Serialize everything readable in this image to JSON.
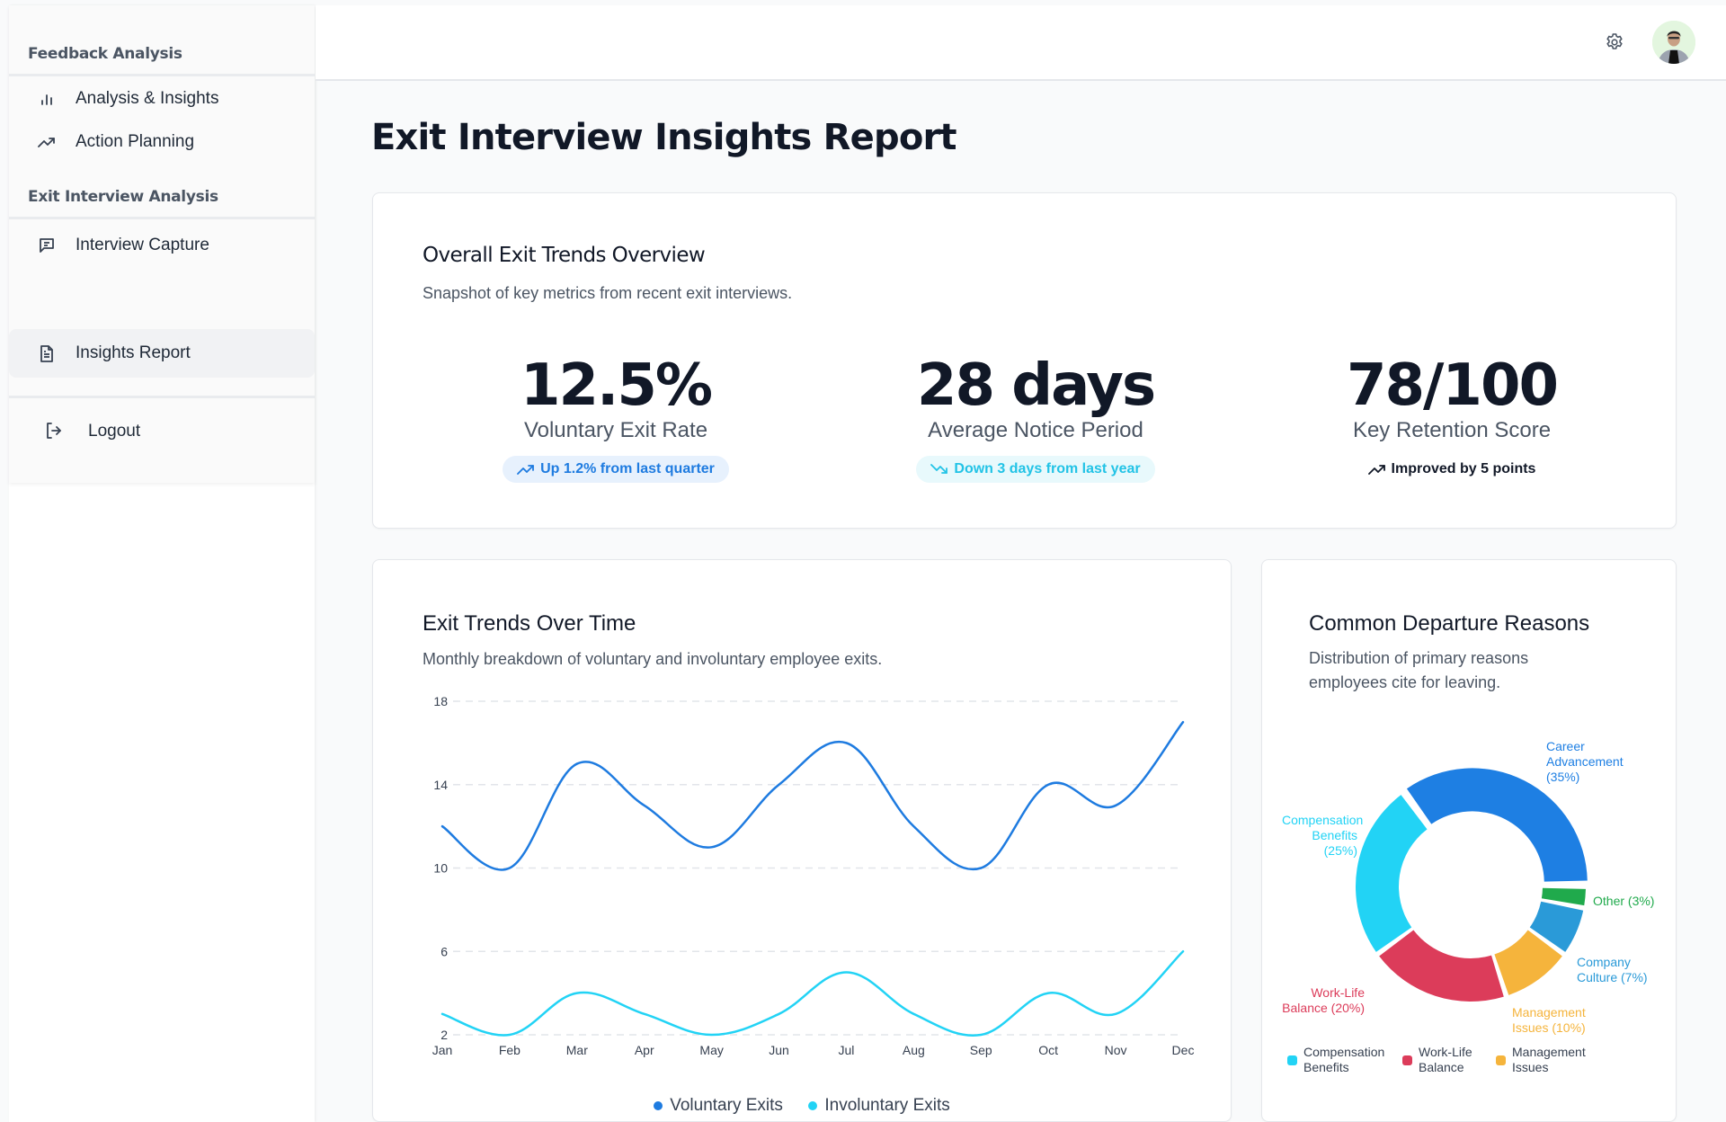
{
  "sidebar": {
    "sections": [
      {
        "title": "Feedback Analysis",
        "items": [
          {
            "label": "Analysis & Insights",
            "icon": "bar-chart-icon"
          },
          {
            "label": "Action Planning",
            "icon": "trending-up-icon"
          }
        ]
      },
      {
        "title": "Exit Interview Analysis",
        "items": [
          {
            "label": "Interview Capture",
            "icon": "message-square-icon"
          },
          {
            "label": "Insights Report",
            "icon": "file-text-icon",
            "active": true
          }
        ]
      }
    ],
    "logout_label": "Logout"
  },
  "header": {
    "settings_icon": "gear-icon",
    "avatar_icon": "user-avatar"
  },
  "page": {
    "title": "Exit Interview Insights Report"
  },
  "overview": {
    "title": "Overall Exit Trends Overview",
    "subtitle": "Snapshot of key metrics from recent exit interviews.",
    "metrics": [
      {
        "value": "12.5%",
        "label": "Voluntary Exit Rate",
        "trend": "Up 1.2% from last quarter",
        "trend_dir": "up",
        "color": "#1e7be0",
        "bg": "#e7f1fd"
      },
      {
        "value": "28 days",
        "label": "Average Notice Period",
        "trend": "Down 3 days from last year",
        "trend_dir": "down",
        "color": "#22c3e6",
        "bg": "#e8f9fc"
      },
      {
        "value": "78/100",
        "label": "Key Retention Score",
        "trend": "Improved by 5 points",
        "trend_dir": "up",
        "color": "#111827",
        "bg": "transparent"
      }
    ]
  },
  "trend_card": {
    "title": "Exit Trends Over Time",
    "subtitle": "Monthly breakdown of voluntary and involuntary employee exits."
  },
  "reasons_card": {
    "title": "Common Departure Reasons",
    "subtitle": "Distribution of primary reasons employees cite for leaving."
  },
  "chart_data": [
    {
      "type": "line",
      "title": "Exit Trends Over Time",
      "x": [
        "Jan",
        "Feb",
        "Mar",
        "Apr",
        "May",
        "Jun",
        "Jul",
        "Aug",
        "Sep",
        "Oct",
        "Nov",
        "Dec"
      ],
      "yticks": [
        "18",
        "14",
        "10",
        "6",
        "2"
      ],
      "ylim": [
        2,
        18
      ],
      "grid": true,
      "legend_position": "bottom",
      "series": [
        {
          "name": "Voluntary Exits",
          "color": "#1e7be0",
          "values": [
            12,
            10,
            15,
            13,
            11,
            14,
            16,
            12,
            10,
            14,
            13,
            17
          ]
        },
        {
          "name": "Involuntary Exits",
          "color": "#22d3f5",
          "values": [
            3,
            2,
            4,
            3,
            2,
            3,
            5,
            3,
            2,
            4,
            3,
            6
          ]
        }
      ]
    },
    {
      "type": "pie",
      "title": "Common Departure Reasons",
      "donut": true,
      "slices": [
        {
          "name": "Career Advancement",
          "value": 35,
          "color": "#1e7fe3",
          "label": "Career Advancement (35%)"
        },
        {
          "name": "Other",
          "value": 3,
          "color": "#20aa4c",
          "label": "Other (3%)"
        },
        {
          "name": "Company Culture",
          "value": 7,
          "color": "#2a9ad8",
          "label": "Company Culture (7%)"
        },
        {
          "name": "Management Issues",
          "value": 10,
          "color": "#f5b43c",
          "label": "Management Issues (10%)"
        },
        {
          "name": "Work-Life Balance",
          "value": 20,
          "color": "#dc3c5a",
          "label": "Work-Life Balance (20%)"
        },
        {
          "name": "Compensation Benefits",
          "value": 25,
          "color": "#22d3f5",
          "label": "Compensation Benefits (25%)"
        }
      ],
      "legend": [
        {
          "name": "Compensation Benefits",
          "color": "#22d3f5"
        },
        {
          "name": "Work-Life Balance",
          "color": "#dc3c5a"
        },
        {
          "name": "Management Issues",
          "color": "#f5b43c"
        }
      ]
    }
  ]
}
